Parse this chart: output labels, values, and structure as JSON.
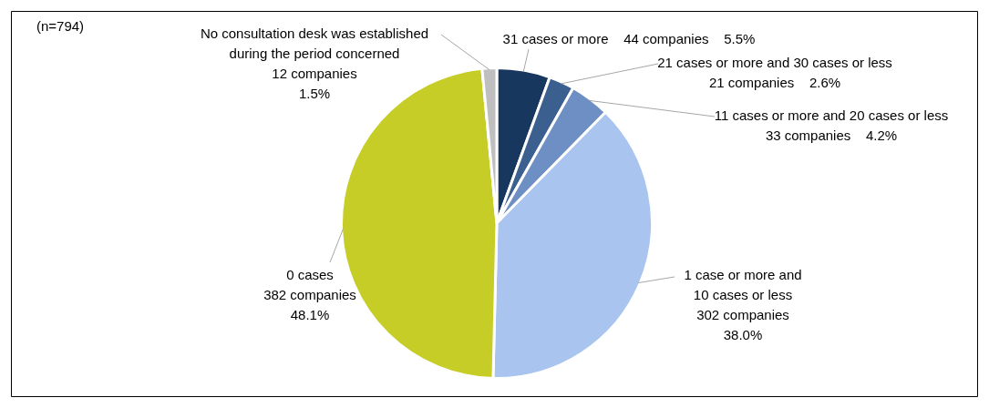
{
  "chart_data": {
    "type": "pie",
    "categories": [
      "31 cases or more",
      "21 cases or more and 30 cases or less",
      "11 cases or more and 20 cases or less",
      "1 case or more and 10 cases or less",
      "0 cases",
      "No consultation desk was established during the period concerned"
    ],
    "values": [
      44,
      21,
      33,
      302,
      382,
      12
    ],
    "value_labels": [
      "44 companies    5.5%",
      "21 companies    2.6%",
      "33 companies    4.2%",
      "302 companies 38.0%",
      "382 companies 48.1%",
      "12 companies 1.5%"
    ],
    "colors": [
      "#17375e",
      "#3b5f8f",
      "#6d8fc4",
      "#a9c4ee",
      "#c5cd26",
      "#bfbfbf"
    ],
    "annotations": [
      "(n=794)"
    ],
    "legend": false
  }
}
